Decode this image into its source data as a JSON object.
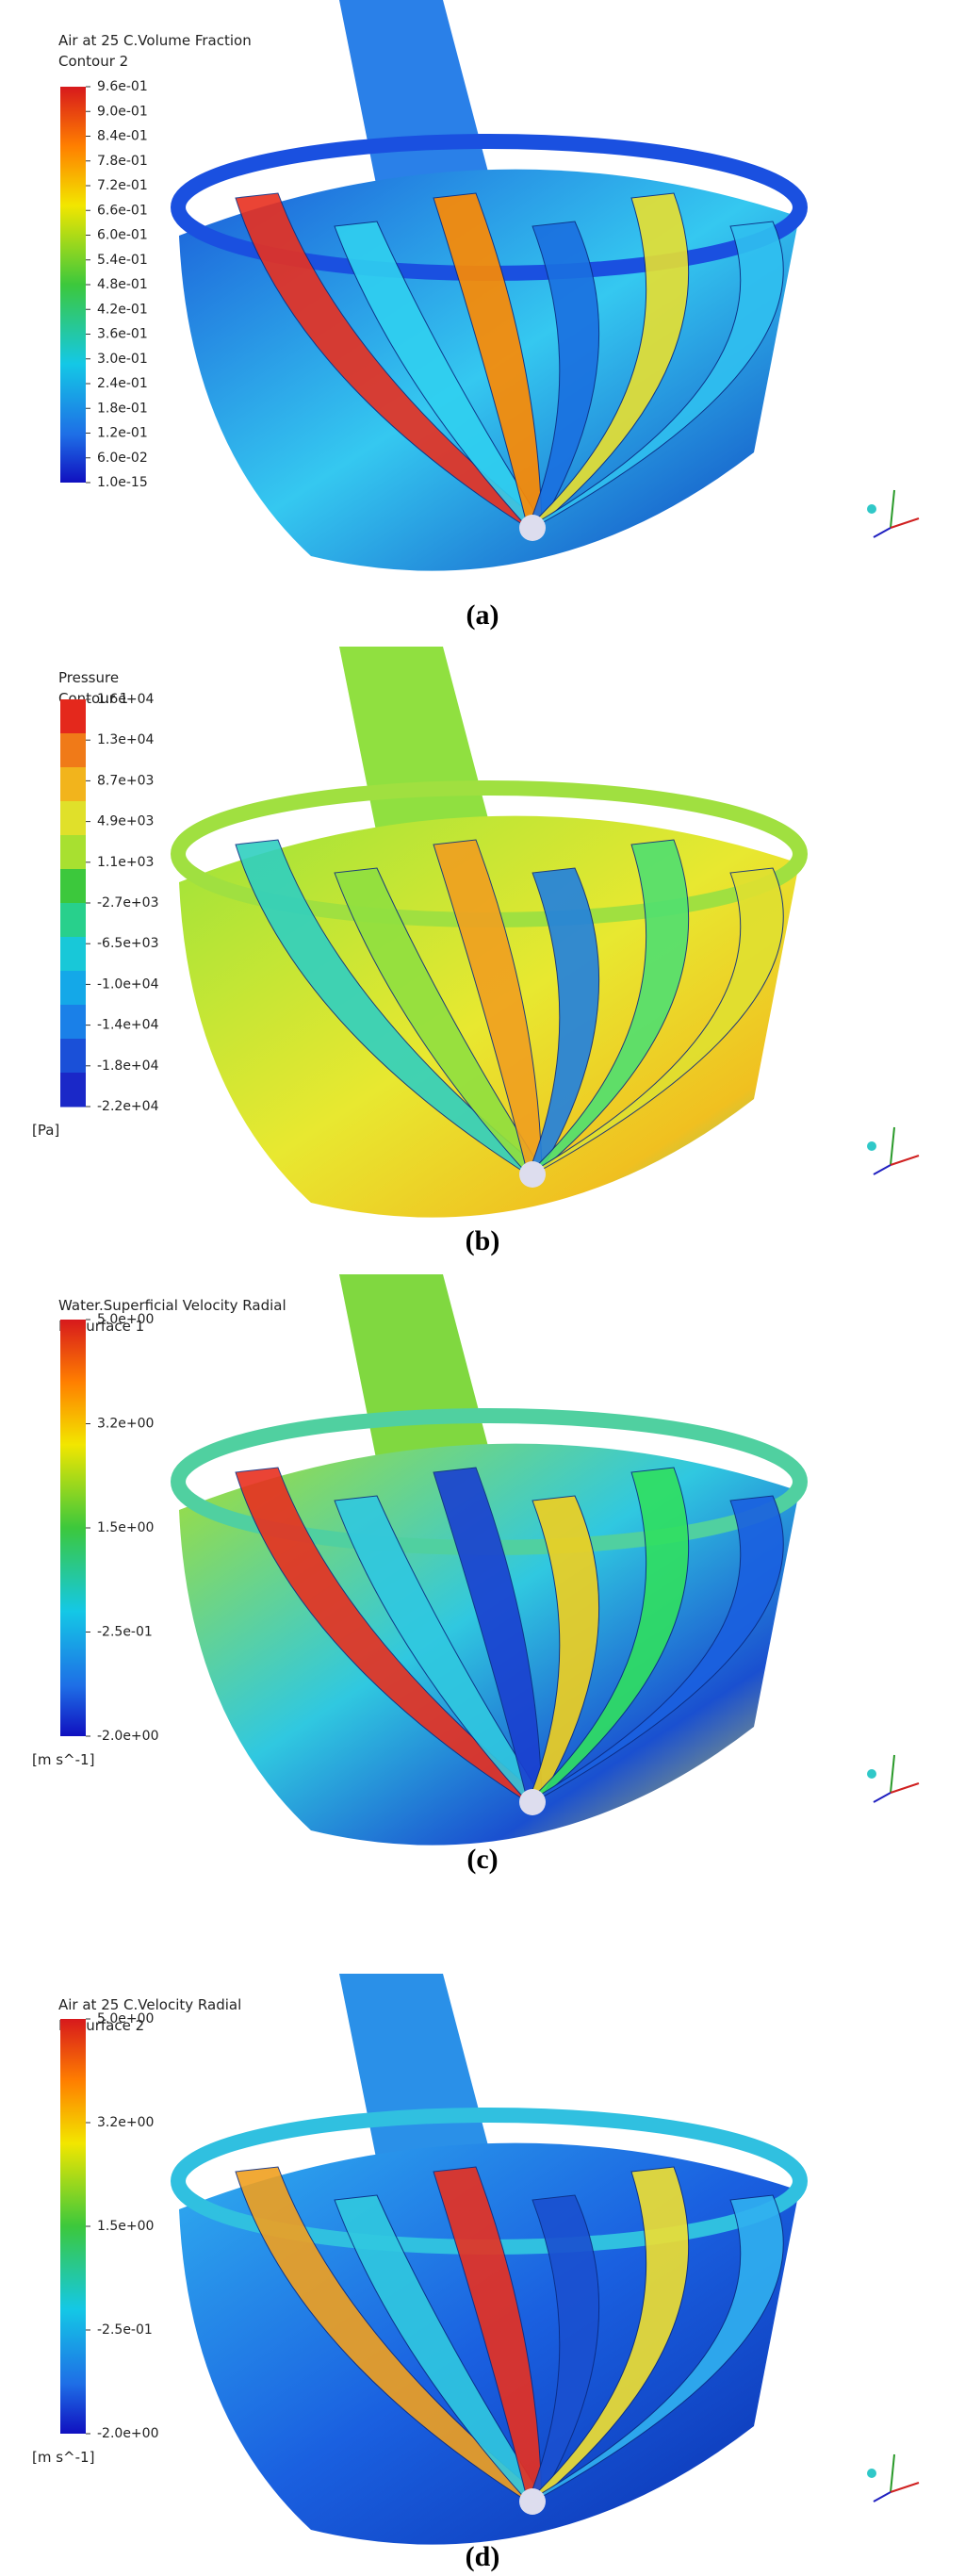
{
  "panels": [
    {
      "legend_title": "Air at 25 C.Volume Fraction",
      "legend_subtitle": "Contour 2",
      "ticks": [
        "9.6e-01",
        "9.0e-01",
        "8.4e-01",
        "7.8e-01",
        "7.2e-01",
        "6.6e-01",
        "6.0e-01",
        "5.4e-01",
        "4.8e-01",
        "4.2e-01",
        "3.6e-01",
        "3.0e-01",
        "2.4e-01",
        "1.8e-01",
        "1.2e-01",
        "6.0e-02",
        "1.0e-15"
      ],
      "caption": "(a)"
    },
    {
      "legend_title": "Pressure",
      "legend_subtitle": "Contour 1",
      "ticks": [
        "1.6e+04",
        "1.3e+04",
        "8.7e+03",
        "4.9e+03",
        "1.1e+03",
        "-2.7e+03",
        "-6.5e+03",
        "-1.0e+04",
        "-1.4e+04",
        "-1.8e+04",
        "-2.2e+04"
      ],
      "unit": "[Pa]",
      "caption": "(b)"
    },
    {
      "legend_title": "Water.Superficial Velocity Radial",
      "legend_subtitle": "Isosurface 1",
      "ticks": [
        "5.0e+00",
        "3.2e+00",
        "1.5e+00",
        "-2.5e-01",
        "-2.0e+00"
      ],
      "unit": "[m s^-1]",
      "caption": "(c)"
    },
    {
      "legend_title": "Air at 25 C.Velocity Radial",
      "legend_subtitle": "Isosurface 2",
      "ticks": [
        "5.0e+00",
        "3.2e+00",
        "1.5e+00",
        "-2.5e-01",
        "-2.0e+00"
      ],
      "unit": "[m s^-1]",
      "caption": "(d)"
    }
  ]
}
